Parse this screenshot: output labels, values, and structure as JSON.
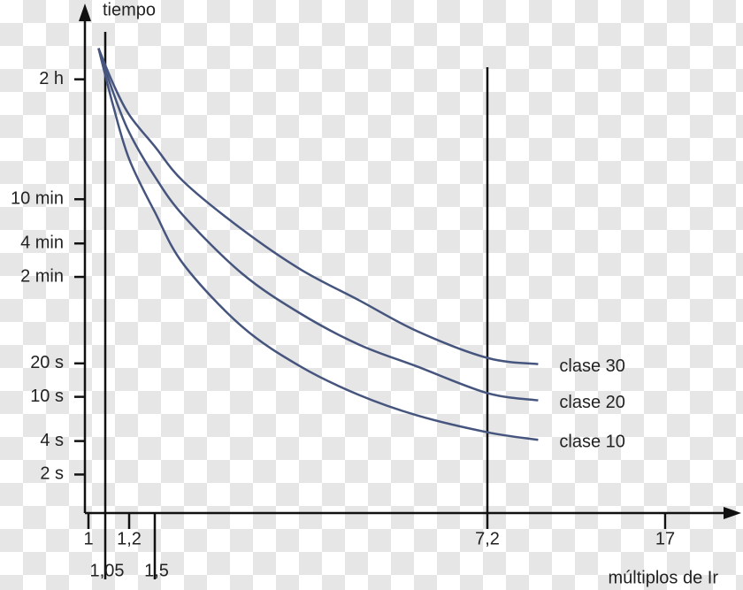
{
  "chart_data": {
    "type": "line",
    "x_label": "múltiplos de Ir",
    "y_label": "tiempo",
    "log_y": true,
    "x": [
      1.03,
      1.1,
      1.2,
      1.5,
      2,
      3,
      4,
      5,
      6,
      7.2,
      10
    ],
    "series": [
      {
        "name": "clase 30",
        "color": "#46557e",
        "values": [
          13700,
          6560,
          3460,
          1790,
          857,
          320,
          140,
          74,
          38.9,
          22.4,
          19.7
        ]
      },
      {
        "name": "clase 20",
        "color": "#46557e",
        "values": [
          13700,
          5470,
          2400,
          960,
          421,
          128,
          56,
          29.5,
          18.7,
          10.8,
          9.3
        ]
      },
      {
        "name": "clase 10",
        "color": "#46557e",
        "values": [
          13700,
          4150,
          1380,
          461,
          154,
          42.7,
          18.7,
          10.4,
          6.8,
          4.8,
          4.1
        ]
      }
    ],
    "xlim": [
      0.99,
      21
    ],
    "xticks": [
      1,
      {
        "value": 1.05,
        "label": "1,05"
      },
      {
        "value": 1.2,
        "label": "1,2"
      },
      {
        "value": 1.5,
        "label": "1,5"
      },
      {
        "value": 7.2,
        "label": "7,2"
      },
      17
    ],
    "ylim": [
      0.9,
      31000
    ],
    "yticks": [
      {
        "value": 7200,
        "label": "2 h"
      },
      {
        "value": 600,
        "label": "10 min"
      },
      {
        "value": 240,
        "label": "4 min"
      },
      {
        "value": 120,
        "label": "2 min"
      },
      {
        "value": 20,
        "label": "20 s"
      },
      {
        "value": 10,
        "label": "10 s"
      },
      {
        "value": 4,
        "label": "4 s"
      },
      {
        "value": 2,
        "label": "2 s"
      }
    ]
  }
}
